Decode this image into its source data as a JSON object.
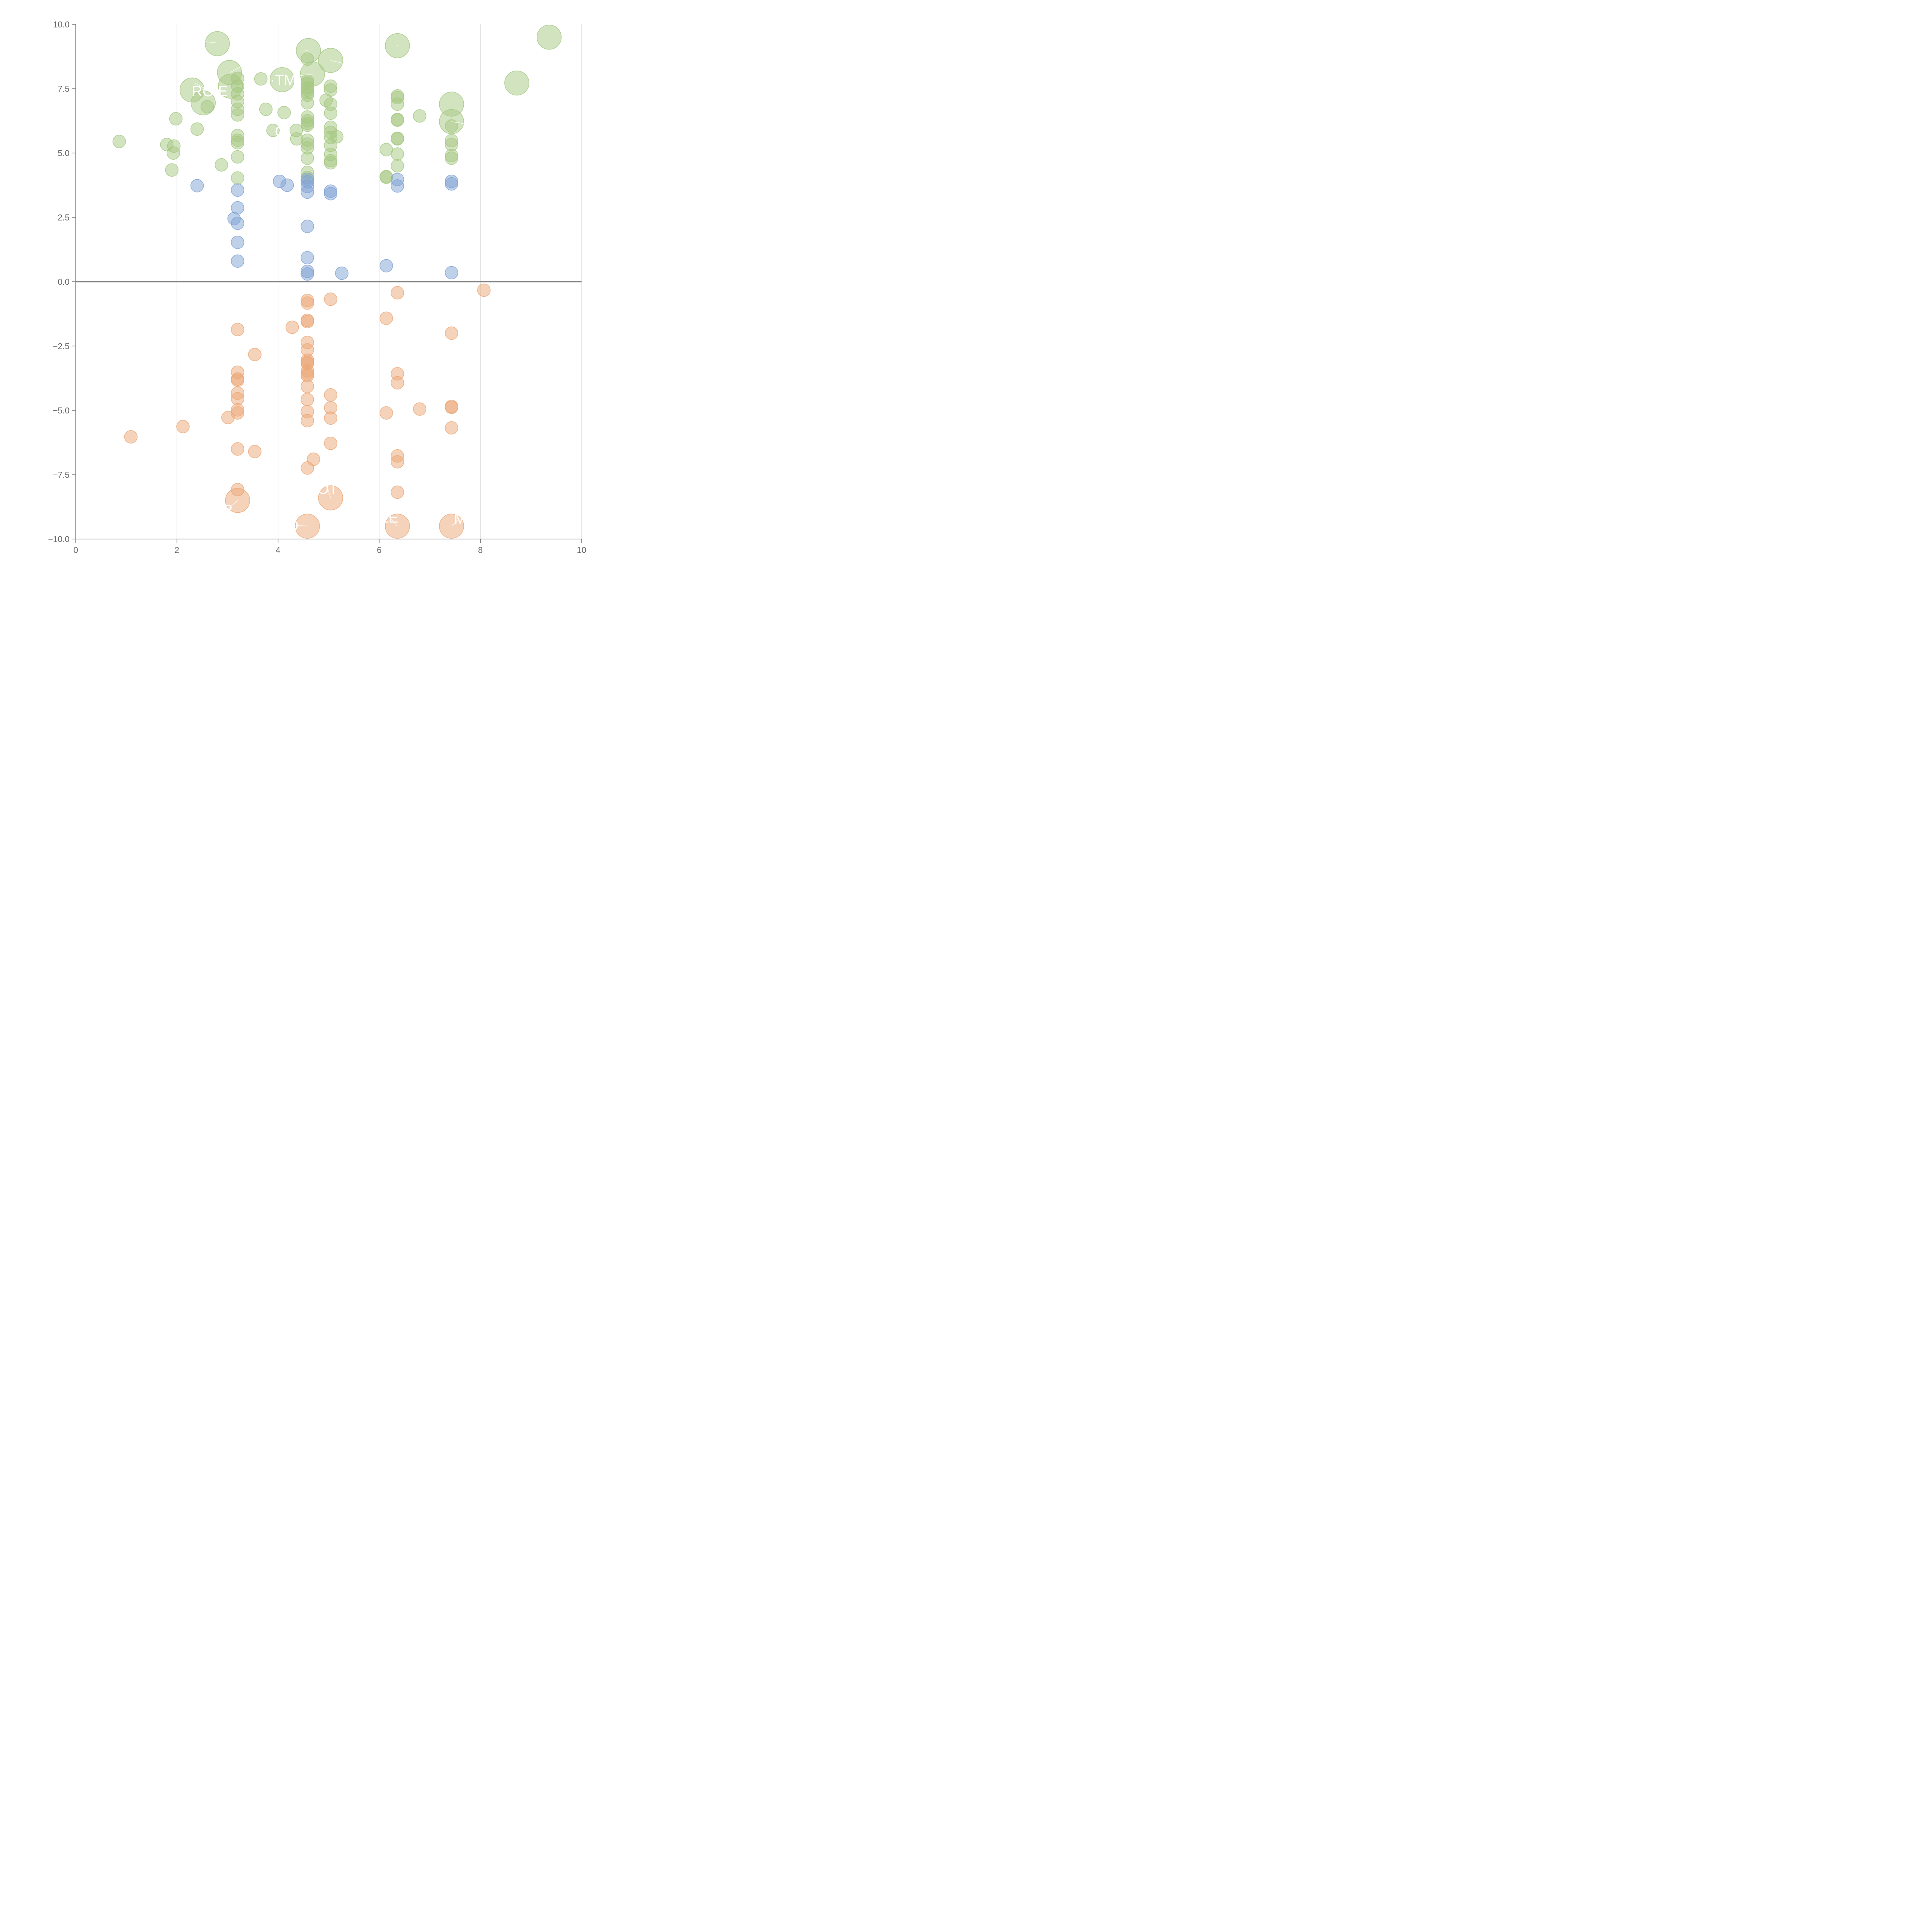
{
  "chart_data": {
    "type": "scatter",
    "title": "",
    "xlabel": "",
    "ylabel": "",
    "xlim": [
      0,
      10
    ],
    "ylim": [
      -10,
      10
    ],
    "x_ticks": [
      "0",
      "2",
      "4",
      "6",
      "8",
      "10"
    ],
    "y_ticks": [
      "10.0",
      "7.5",
      "5.0",
      "2.5",
      "0.0",
      "−2.5",
      "−5.0",
      "−7.5",
      "−10.0"
    ],
    "grid": {
      "vertical": true,
      "horizontal": false
    },
    "zero_line": true,
    "colors": {
      "green": "#a5c882",
      "blue": "#7fa1d3",
      "orange": "#eba775"
    },
    "series": [
      {
        "color_key": "green",
        "points": [
          [
            0.86,
            5.45,
            11
          ],
          [
            1.8,
            5.33,
            11
          ],
          [
            1.94,
            5.27,
            11
          ],
          [
            1.93,
            5.0,
            11
          ],
          [
            1.9,
            4.34,
            11
          ],
          [
            1.98,
            6.33,
            11
          ],
          [
            2.4,
            5.93,
            11
          ],
          [
            2.6,
            6.8,
            11
          ],
          [
            2.88,
            4.54,
            11
          ],
          [
            3.2,
            7.9,
            11
          ],
          [
            3.2,
            7.6,
            11
          ],
          [
            3.2,
            7.3,
            11
          ],
          [
            3.2,
            7.0,
            11
          ],
          [
            3.2,
            6.7,
            11
          ],
          [
            3.2,
            6.48,
            11
          ],
          [
            3.2,
            5.68,
            11
          ],
          [
            3.2,
            5.5,
            11
          ],
          [
            3.2,
            5.4,
            11
          ],
          [
            3.2,
            4.85,
            11
          ],
          [
            3.2,
            4.03,
            11
          ],
          [
            3.66,
            7.88,
            11
          ],
          [
            3.76,
            6.7,
            11
          ],
          [
            3.9,
            5.88,
            11
          ],
          [
            4.12,
            6.57,
            11
          ],
          [
            4.36,
            5.88,
            11
          ],
          [
            4.37,
            5.55,
            11
          ],
          [
            4.58,
            8.65,
            11
          ],
          [
            4.58,
            7.8,
            11
          ],
          [
            4.58,
            7.7,
            11
          ],
          [
            4.58,
            7.55,
            11
          ],
          [
            4.58,
            7.45,
            11
          ],
          [
            4.58,
            7.35,
            11
          ],
          [
            4.58,
            7.25,
            11
          ],
          [
            4.58,
            6.95,
            11
          ],
          [
            4.58,
            6.4,
            11
          ],
          [
            4.58,
            6.25,
            11
          ],
          [
            4.58,
            6.15,
            11
          ],
          [
            4.58,
            6.08,
            11
          ],
          [
            4.58,
            5.5,
            11
          ],
          [
            4.58,
            5.35,
            11
          ],
          [
            4.58,
            5.2,
            11
          ],
          [
            4.58,
            4.8,
            11
          ],
          [
            4.58,
            4.25,
            11
          ],
          [
            4.58,
            4.05,
            11
          ],
          [
            4.95,
            7.05,
            11
          ],
          [
            5.04,
            7.6,
            11
          ],
          [
            5.04,
            7.45,
            11
          ],
          [
            5.04,
            6.9,
            11
          ],
          [
            5.04,
            6.55,
            11
          ],
          [
            5.04,
            6.0,
            11
          ],
          [
            5.04,
            5.8,
            11
          ],
          [
            5.04,
            5.6,
            11
          ],
          [
            5.04,
            5.3,
            11
          ],
          [
            5.04,
            4.95,
            11
          ],
          [
            5.04,
            4.7,
            11
          ],
          [
            5.04,
            4.62,
            11
          ],
          [
            5.16,
            5.63,
            11
          ],
          [
            6.14,
            5.13,
            11
          ],
          [
            6.14,
            4.08,
            11
          ],
          [
            6.14,
            4.06,
            11
          ],
          [
            6.36,
            7.22,
            11
          ],
          [
            6.36,
            7.15,
            11
          ],
          [
            6.36,
            6.9,
            11
          ],
          [
            6.36,
            6.3,
            11
          ],
          [
            6.36,
            6.28,
            11
          ],
          [
            6.36,
            5.57,
            11
          ],
          [
            6.36,
            5.55,
            11
          ],
          [
            6.36,
            4.96,
            11
          ],
          [
            6.36,
            4.5,
            11
          ],
          [
            6.8,
            6.44,
            11
          ],
          [
            7.43,
            6.05,
            11
          ],
          [
            7.43,
            5.48,
            11
          ],
          [
            7.43,
            5.33,
            11
          ],
          [
            7.43,
            4.9,
            11
          ],
          [
            7.43,
            4.8,
            11
          ],
          [
            2.8,
            9.25,
            21
          ],
          [
            3.04,
            8.13,
            21
          ],
          [
            3.06,
            7.6,
            21
          ],
          [
            2.3,
            7.45,
            21
          ],
          [
            2.52,
            6.95,
            21
          ],
          [
            4.08,
            7.85,
            21
          ],
          [
            4.6,
            8.98,
            21
          ],
          [
            4.68,
            8.07,
            21
          ],
          [
            5.04,
            8.6,
            21
          ],
          [
            6.36,
            9.17,
            21
          ],
          [
            7.43,
            6.9,
            21
          ],
          [
            7.43,
            6.22,
            21
          ],
          [
            8.72,
            7.72,
            21
          ],
          [
            9.36,
            9.5,
            21
          ]
        ]
      },
      {
        "color_key": "blue",
        "points": [
          [
            2.4,
            3.73,
            11
          ],
          [
            3.2,
            3.56,
            11
          ],
          [
            3.2,
            2.87,
            11
          ],
          [
            3.13,
            2.45,
            11
          ],
          [
            3.2,
            2.27,
            11
          ],
          [
            3.2,
            1.53,
            11
          ],
          [
            3.2,
            0.8,
            11
          ],
          [
            4.03,
            3.9,
            11
          ],
          [
            4.18,
            3.75,
            11
          ],
          [
            4.58,
            3.98,
            11
          ],
          [
            4.58,
            3.88,
            11
          ],
          [
            4.58,
            3.7,
            11
          ],
          [
            4.58,
            3.48,
            11
          ],
          [
            4.58,
            2.15,
            11
          ],
          [
            4.58,
            0.93,
            11
          ],
          [
            4.58,
            0.4,
            11
          ],
          [
            4.58,
            0.3,
            11
          ],
          [
            5.04,
            3.52,
            11
          ],
          [
            5.04,
            3.42,
            11
          ],
          [
            5.26,
            0.33,
            11
          ],
          [
            6.14,
            0.62,
            11
          ],
          [
            6.36,
            3.97,
            11
          ],
          [
            6.36,
            3.72,
            11
          ],
          [
            7.43,
            3.9,
            11
          ],
          [
            7.43,
            3.8,
            11
          ],
          [
            7.43,
            0.35,
            11
          ]
        ]
      },
      {
        "color_key": "orange",
        "points": [
          [
            1.09,
            -6.03,
            11
          ],
          [
            2.12,
            -5.63,
            11
          ],
          [
            3.01,
            -5.28,
            11
          ],
          [
            3.2,
            -1.86,
            11
          ],
          [
            3.2,
            -3.52,
            11
          ],
          [
            3.2,
            -3.78,
            11
          ],
          [
            3.2,
            -3.83,
            11
          ],
          [
            3.2,
            -4.33,
            11
          ],
          [
            3.2,
            -4.55,
            11
          ],
          [
            3.2,
            -4.98,
            11
          ],
          [
            3.2,
            -5.1,
            11
          ],
          [
            3.2,
            -6.5,
            11
          ],
          [
            3.2,
            -8.08,
            11
          ],
          [
            3.54,
            -2.83,
            11
          ],
          [
            3.54,
            -6.6,
            11
          ],
          [
            4.28,
            -1.77,
            11
          ],
          [
            4.58,
            -0.73,
            11
          ],
          [
            4.58,
            -0.83,
            11
          ],
          [
            4.58,
            -1.5,
            11
          ],
          [
            4.58,
            -1.55,
            11
          ],
          [
            4.58,
            -2.36,
            11
          ],
          [
            4.58,
            -2.65,
            11
          ],
          [
            4.58,
            -3.05,
            11
          ],
          [
            4.58,
            -3.13,
            11
          ],
          [
            4.58,
            -3.18,
            11
          ],
          [
            4.58,
            -3.47,
            11
          ],
          [
            4.58,
            -3.58,
            11
          ],
          [
            4.58,
            -3.65,
            11
          ],
          [
            4.58,
            -4.07,
            11
          ],
          [
            4.58,
            -4.58,
            11
          ],
          [
            4.58,
            -5.05,
            11
          ],
          [
            4.58,
            -5.4,
            11
          ],
          [
            4.58,
            -7.24,
            11
          ],
          [
            4.7,
            -6.9,
            11
          ],
          [
            5.04,
            -0.68,
            11
          ],
          [
            5.04,
            -4.4,
            11
          ],
          [
            5.04,
            -4.9,
            11
          ],
          [
            5.04,
            -5.3,
            11
          ],
          [
            5.04,
            -6.28,
            11
          ],
          [
            6.14,
            -1.42,
            11
          ],
          [
            6.14,
            -5.1,
            11
          ],
          [
            6.36,
            -0.43,
            11
          ],
          [
            6.36,
            -3.58,
            11
          ],
          [
            6.36,
            -3.93,
            11
          ],
          [
            6.36,
            -6.77,
            11
          ],
          [
            6.36,
            -7.0,
            11
          ],
          [
            6.36,
            -8.18,
            11
          ],
          [
            6.8,
            -4.95,
            11
          ],
          [
            7.43,
            -2.0,
            11
          ],
          [
            7.43,
            -4.85,
            11
          ],
          [
            7.43,
            -4.88,
            11
          ],
          [
            7.43,
            -5.68,
            11
          ],
          [
            8.07,
            -0.33,
            11
          ],
          [
            3.2,
            -8.5,
            21
          ],
          [
            5.04,
            -8.4,
            21
          ],
          [
            4.58,
            -9.5,
            21
          ],
          [
            6.36,
            -9.5,
            21
          ],
          [
            7.43,
            -9.5,
            21
          ]
        ]
      }
    ],
    "annotations": [
      {
        "text": "",
        "x": 1.99,
        "y": 9.45,
        "tx": 2.78,
        "ty": 9.28
      },
      {
        "text": "",
        "x": 3.5,
        "y": 8.6,
        "tx": 3.05,
        "ty": 8.13
      },
      {
        "text": "·TM",
        "x": 4.1,
        "y": 7.85,
        "tx": 4.1,
        "ty": 7.85
      },
      {
        "text": "RO E",
        "x": 2.65,
        "y": 7.42,
        "tx": 2.35,
        "ty": 7.72
      },
      {
        "text": "",
        "x": 4.5,
        "y": 8.96,
        "tx": 4.6,
        "ty": 8.98
      },
      {
        "text": "",
        "x": 4.4,
        "y": 8.0,
        "tx": 4.68,
        "ty": 8.07
      },
      {
        "text": "",
        "x": 5.35,
        "y": 8.45,
        "tx": 5.04,
        "ty": 8.6
      },
      {
        "text": "",
        "x": 6.36,
        "y": 9.2,
        "tx": 6.36,
        "ty": 9.17
      },
      {
        "text": "G",
        "x": 4.05,
        "y": 5.85,
        "tx": 4.03,
        "ty": 5.85
      },
      {
        "text": "",
        "x": 7.43,
        "y": 6.9,
        "tx": 7.43,
        "ty": 6.9
      },
      {
        "text": "",
        "x": 7.95,
        "y": 6.05,
        "tx": 7.43,
        "ty": 6.22
      },
      {
        "text": "",
        "x": 8.72,
        "y": 7.75,
        "tx": 8.72,
        "ty": 7.72
      },
      {
        "text": "",
        "x": 9.36,
        "y": 9.5,
        "tx": 9.36,
        "ty": 9.5
      },
      {
        "text": "·",
        "x": 1.99,
        "y": 2.5,
        "tx": 1.99,
        "ty": 2.5
      },
      {
        "text": "R",
        "x": 3.0,
        "y": -8.85,
        "tx": 3.2,
        "ty": -8.5
      },
      {
        "text": "OT",
        "x": 4.98,
        "y": -8.03,
        "tx": 5.04,
        "ty": -8.4
      },
      {
        "text": "D",
        "x": 4.3,
        "y": -9.45,
        "tx": 4.58,
        "ty": -9.5
      },
      {
        "text": "LE",
        "x": 6.2,
        "y": -9.15,
        "tx": 6.36,
        "ty": -9.5
      },
      {
        "text": "M",
        "x": 7.6,
        "y": -9.2,
        "tx": 7.43,
        "ty": -9.5
      }
    ]
  }
}
